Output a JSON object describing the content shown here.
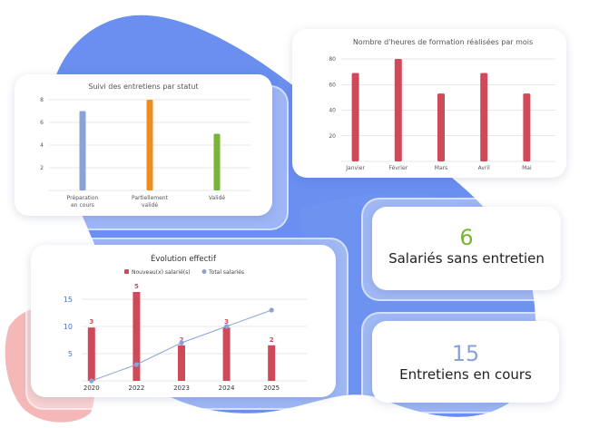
{
  "colors": {
    "blob": "#6a8ff0",
    "blob_light": "#8fadf5",
    "pink": "#f4b8b8",
    "bar_red": "#d0495a",
    "grid": "#cfcfcf",
    "line_blue": "#8aa2d8"
  },
  "kpis": [
    {
      "value": "6",
      "label": "Salariés sans entretien",
      "color": "#78b33a"
    },
    {
      "value": "15",
      "label": "Entretiens en cours",
      "color": "#8aa2d8"
    }
  ],
  "chart_data": [
    {
      "type": "bar",
      "title": "Suivi des entretiens par statut",
      "categories": [
        "Préparation en cours",
        "Partiellement validé",
        "Validé"
      ],
      "category_lines": [
        [
          "Préparation",
          "en cours"
        ],
        [
          "Partiellement",
          "validé"
        ],
        [
          "Validé"
        ]
      ],
      "values": [
        7,
        8,
        5
      ],
      "bar_colors": [
        "#8aa2d8",
        "#f08c1e",
        "#78b33a"
      ],
      "ylim": [
        0,
        8
      ],
      "yticks": [
        "2",
        "4",
        "6",
        "8"
      ],
      "grid": true
    },
    {
      "type": "bar",
      "title": "Nombre d'heures de formation réalisées par mois",
      "categories": [
        "Janvier",
        "Février",
        "Mars",
        "Avril",
        "Mai"
      ],
      "values": [
        69,
        80,
        53,
        69,
        53
      ],
      "ylim": [
        0,
        80
      ],
      "yticks": [
        "20",
        "40",
        "60",
        "80"
      ],
      "grid": true
    },
    {
      "type": "bar",
      "title": "Évolution effectif",
      "legend": [
        "Nouveau(x) salarié(s)",
        "Total salariés"
      ],
      "legend_position": "top",
      "categories": [
        "2020",
        "2022",
        "2023",
        "2024",
        "2025"
      ],
      "series": [
        {
          "name": "Nouveau(x) salarié(s)",
          "type": "bar",
          "values": [
            3,
            5,
            2,
            3,
            2
          ],
          "labels": [
            "3",
            "5",
            "2",
            "3",
            "2"
          ]
        },
        {
          "name": "Total salariés",
          "type": "line",
          "values": [
            0,
            3,
            7,
            10,
            13
          ]
        }
      ],
      "ylim": [
        0,
        15
      ],
      "yticks": [
        "5",
        "10",
        "15"
      ],
      "grid": true
    }
  ]
}
